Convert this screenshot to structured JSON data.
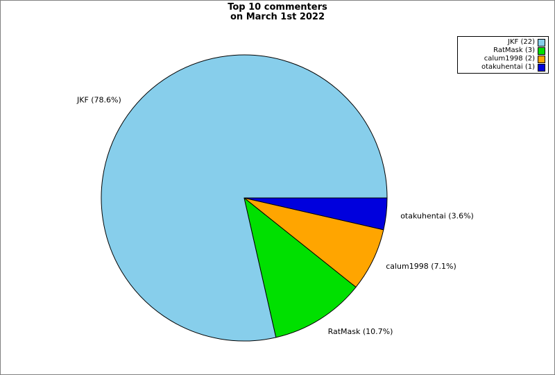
{
  "chart_data": {
    "type": "pie",
    "title": "Top 10 commenters on March 1st 2022",
    "title_lines": [
      "Top 10 commenters",
      "on March 1st 2022"
    ],
    "start_angle_deg": 0,
    "direction": "counterclockwise",
    "legend_position": "top-right",
    "total": 28,
    "slices": [
      {
        "name": "JKF",
        "count": 22,
        "percent": 78.6,
        "color": "#87CEEB",
        "slice_label": "JKF (78.6%)",
        "legend_label": "JKF (22)"
      },
      {
        "name": "RatMask",
        "count": 3,
        "percent": 10.7,
        "color": "#00E000",
        "slice_label": "RatMask (10.7%)",
        "legend_label": "RatMask (3)"
      },
      {
        "name": "calum1998",
        "count": 2,
        "percent": 7.1,
        "color": "#FFA500",
        "slice_label": "calum1998 (7.1%)",
        "legend_label": "calum1998 (2)"
      },
      {
        "name": "otakuhentai",
        "count": 1,
        "percent": 3.6,
        "color": "#0000DD",
        "slice_label": "otakuhentai (3.6%)",
        "legend_label": "otakuhentai (1)"
      }
    ],
    "colors": {
      "edge": "#000000",
      "background": "#FFFFFF",
      "figure_border": "#808080"
    }
  }
}
